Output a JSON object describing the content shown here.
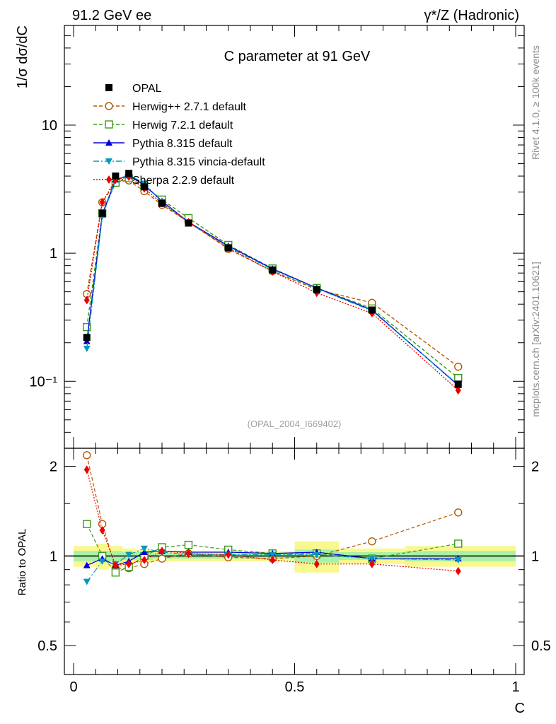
{
  "header": {
    "left": "91.2 GeV ee",
    "right_main": "γ*/Z (Hadronic)"
  },
  "side_text": {
    "top": "Rivet 4.1.0, ≥ 100k events",
    "bottom": "mcplots.cern.ch [arXiv:2401.10621]"
  },
  "chart_data": {
    "type": "line",
    "title": "C parameter at 91 GeV",
    "analysis_tag": "(OPAL_2004_I669402)",
    "xlabel": "C",
    "ylabel": "1/σ  dσ/dC",
    "ratio_ylabel": "Ratio to OPAL",
    "xlim": [
      0,
      1
    ],
    "ylim": [
      0.03,
      60
    ],
    "ratio_ylim": [
      0.4,
      2.3
    ],
    "yscale": "log",
    "x_ticks": [
      "0",
      "0.5",
      "1"
    ],
    "y_ticks": [
      {
        "v": 0.1,
        "label": "10⁻¹"
      },
      {
        "v": 1,
        "label": "1"
      },
      {
        "v": 10,
        "label": "10"
      }
    ],
    "ratio_ticks": [
      "0.5",
      "1",
      "2"
    ],
    "x": [
      0.03,
      0.065,
      0.095,
      0.125,
      0.16,
      0.2,
      0.26,
      0.35,
      0.45,
      0.55,
      0.675,
      0.87
    ],
    "data": {
      "name": "OPAL",
      "values": [
        0.22,
        2.05,
        4.0,
        4.2,
        3.3,
        2.45,
        1.72,
        1.1,
        0.74,
        0.52,
        0.36,
        0.095
      ]
    },
    "band": {
      "x_edges": [
        0,
        0.05,
        0.08,
        0.11,
        0.14,
        0.18,
        0.22,
        0.3,
        0.4,
        0.5,
        0.6,
        0.75,
        1.0
      ],
      "inner": [
        0.04,
        0.04,
        0.04,
        0.03,
        0.03,
        0.02,
        0.02,
        0.02,
        0.02,
        0.05,
        0.03,
        0.04
      ],
      "outer": [
        0.08,
        0.1,
        0.08,
        0.06,
        0.05,
        0.04,
        0.04,
        0.04,
        0.04,
        0.12,
        0.06,
        0.08
      ]
    },
    "series": [
      {
        "name": "Herwig++ 2.7.1 default",
        "color": "#b35900",
        "dash": "5,3",
        "marker": "circle-open",
        "values": [
          0.48,
          2.5,
          3.6,
          3.7,
          3.05,
          2.38,
          1.75,
          1.08,
          0.725,
          0.52,
          0.41,
          0.13
        ],
        "ratio": [
          2.18,
          1.28,
          0.91,
          0.91,
          0.94,
          0.98,
          1.02,
          0.99,
          0.98,
          1.0,
          1.12,
          1.4
        ]
      },
      {
        "name": "Herwig 7.2.1 default",
        "color": "#3a9a1a",
        "dash": "5,3",
        "marker": "square-open",
        "values": [
          0.265,
          2.05,
          3.55,
          3.85,
          3.35,
          2.62,
          1.88,
          1.16,
          0.76,
          0.535,
          0.37,
          0.106
        ],
        "ratio": [
          1.28,
          1.0,
          0.88,
          0.92,
          1.0,
          1.07,
          1.09,
          1.05,
          1.02,
          1.02,
          0.98,
          1.1
        ]
      },
      {
        "name": "Pythia 8.315 default",
        "color": "#0000dd",
        "dash": "",
        "marker": "triangle-up",
        "values": [
          0.205,
          2.0,
          3.75,
          4.05,
          3.4,
          2.55,
          1.75,
          1.14,
          0.755,
          0.535,
          0.36,
          0.093
        ],
        "ratio": [
          0.93,
          0.98,
          0.93,
          0.96,
          1.03,
          1.04,
          1.03,
          1.03,
          1.02,
          1.03,
          0.98,
          0.98
        ]
      },
      {
        "name": "Pythia 8.315 vincia-default",
        "color": "#0099bb",
        "dash": "8,3,2,3",
        "marker": "triangle-down",
        "values": [
          0.18,
          1.95,
          3.7,
          4.1,
          3.5,
          2.52,
          1.73,
          1.12,
          0.745,
          0.53,
          0.355,
          0.094
        ],
        "ratio": [
          0.82,
          0.96,
          0.94,
          1.01,
          1.06,
          1.03,
          1.01,
          1.01,
          1.01,
          1.01,
          0.98,
          0.97
        ]
      },
      {
        "name": "Sherpa 2.2.9 default",
        "color": "#ee0000",
        "dash": "2,2",
        "marker": "diamond",
        "values": [
          0.43,
          2.5,
          3.75,
          3.95,
          3.2,
          2.45,
          1.75,
          1.1,
          0.72,
          0.49,
          0.34,
          0.085
        ],
        "ratio": [
          1.95,
          1.22,
          0.93,
          0.94,
          0.97,
          1.04,
          1.02,
          1.01,
          0.97,
          0.94,
          0.94,
          0.89
        ]
      }
    ]
  }
}
